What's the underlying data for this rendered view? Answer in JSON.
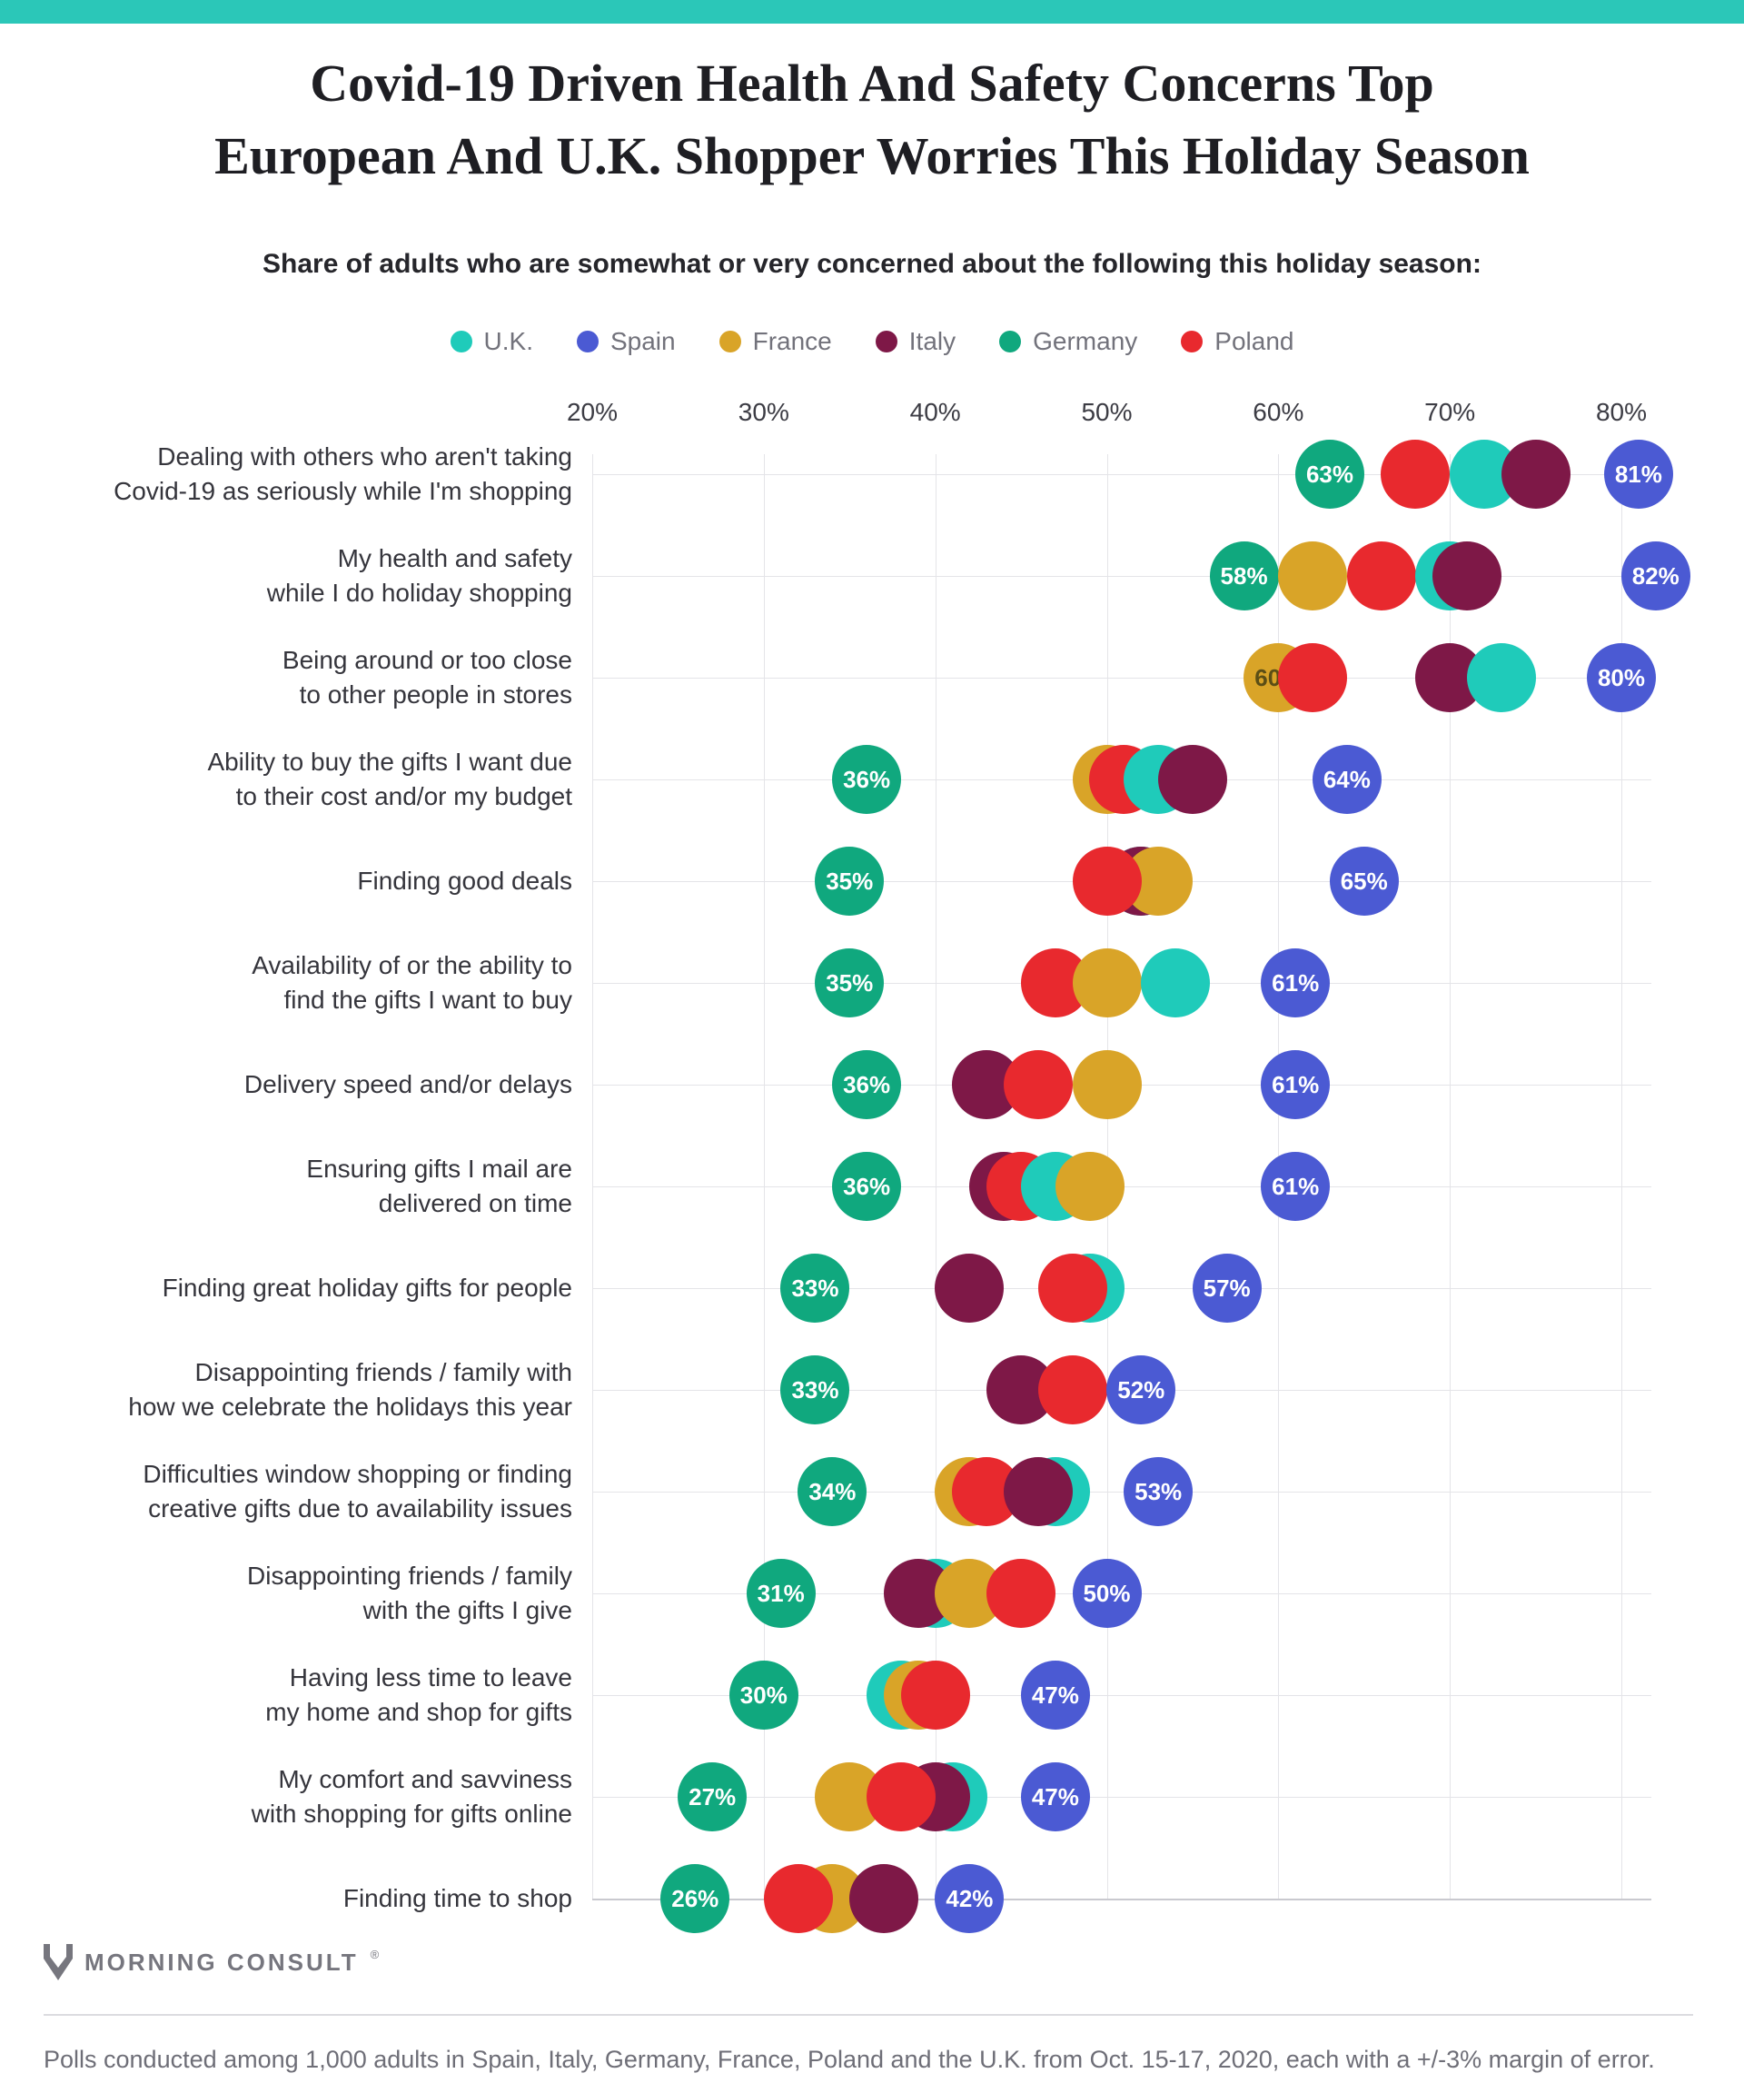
{
  "page": {
    "accent_bar_color": "#2BC7B8",
    "background": "#ffffff"
  },
  "title": {
    "text": "Covid-19 Driven Health And Safety Concerns Top\nEuropean And U.K. Shopper Worries This Holiday Season"
  },
  "subtitle": "Share of adults who are somewhat or very concerned about the following this holiday season:",
  "legend": [
    {
      "label": "U.K.",
      "color": "#1FCBBA"
    },
    {
      "label": "Spain",
      "color": "#4B5AD3"
    },
    {
      "label": "France",
      "color": "#D9A428"
    },
    {
      "label": "Italy",
      "color": "#7E1847"
    },
    {
      "label": "Germany",
      "color": "#10A87E"
    },
    {
      "label": "Poland",
      "color": "#E8292E"
    }
  ],
  "chart_data": {
    "type": "scatter",
    "x_axis": {
      "ticks": [
        20,
        30,
        40,
        50,
        60,
        70,
        80
      ],
      "tick_suffix": "%",
      "min": 20,
      "max": 80,
      "grid": true
    },
    "legend_position": "top",
    "dark_dot_label_color": "#5b4e16",
    "rows": [
      {
        "label": "Dealing with others who aren't taking\nCovid-19 as seriously while I'm shopping",
        "dots": [
          {
            "country": "Germany",
            "value": 63,
            "label": "63%"
          },
          {
            "country": "Poland",
            "value": 68
          },
          {
            "country": "U.K.",
            "value": 72
          },
          {
            "country": "Italy",
            "value": 75
          },
          {
            "country": "Spain",
            "value": 81,
            "label": "81%"
          }
        ]
      },
      {
        "label": "My health and safety\nwhile I do holiday shopping",
        "dots": [
          {
            "country": "Germany",
            "value": 58,
            "label": "58%"
          },
          {
            "country": "France",
            "value": 62
          },
          {
            "country": "Poland",
            "value": 66
          },
          {
            "country": "U.K.",
            "value": 70
          },
          {
            "country": "Italy",
            "value": 71
          },
          {
            "country": "Spain",
            "value": 82,
            "label": "82%"
          }
        ]
      },
      {
        "label": "Being around or too close\nto other people in stores",
        "dots": [
          {
            "country": "France",
            "value": 60,
            "label": "60%",
            "label_dark": true
          },
          {
            "country": "Poland",
            "value": 62
          },
          {
            "country": "Italy",
            "value": 70
          },
          {
            "country": "U.K.",
            "value": 73
          },
          {
            "country": "Spain",
            "value": 80,
            "label": "80%"
          }
        ]
      },
      {
        "label": "Ability to buy the gifts I want due\nto their cost and/or my budget",
        "dots": [
          {
            "country": "Germany",
            "value": 36,
            "label": "36%"
          },
          {
            "country": "France",
            "value": 50
          },
          {
            "country": "Poland",
            "value": 51
          },
          {
            "country": "U.K.",
            "value": 53
          },
          {
            "country": "Italy",
            "value": 55
          },
          {
            "country": "Spain",
            "value": 64,
            "label": "64%"
          }
        ]
      },
      {
        "label": "Finding good deals",
        "dots": [
          {
            "country": "Germany",
            "value": 35,
            "label": "35%"
          },
          {
            "country": "U.K.",
            "value": 52
          },
          {
            "country": "Italy",
            "value": 52
          },
          {
            "country": "France",
            "value": 53
          },
          {
            "country": "Poland",
            "value": 50
          },
          {
            "country": "Spain",
            "value": 65,
            "label": "65%"
          }
        ]
      },
      {
        "label": "Availability of or the ability to\nfind the gifts I want to buy",
        "dots": [
          {
            "country": "Germany",
            "value": 35,
            "label": "35%"
          },
          {
            "country": "Poland",
            "value": 47
          },
          {
            "country": "France",
            "value": 50
          },
          {
            "country": "U.K.",
            "value": 54
          },
          {
            "country": "Spain",
            "value": 61,
            "label": "61%"
          }
        ]
      },
      {
        "label": "Delivery speed and/or delays",
        "dots": [
          {
            "country": "Germany",
            "value": 36,
            "label": "36%"
          },
          {
            "country": "Italy",
            "value": 43
          },
          {
            "country": "Poland",
            "value": 46
          },
          {
            "country": "France",
            "value": 50
          },
          {
            "country": "Spain",
            "value": 61,
            "label": "61%"
          }
        ]
      },
      {
        "label": "Ensuring gifts I mail are\ndelivered on time",
        "dots": [
          {
            "country": "Germany",
            "value": 36,
            "label": "36%"
          },
          {
            "country": "Italy",
            "value": 44
          },
          {
            "country": "Poland",
            "value": 45
          },
          {
            "country": "U.K.",
            "value": 47
          },
          {
            "country": "France",
            "value": 49
          },
          {
            "country": "Spain",
            "value": 61,
            "label": "61%"
          }
        ]
      },
      {
        "label": "Finding great holiday gifts for people",
        "dots": [
          {
            "country": "Germany",
            "value": 33,
            "label": "33%"
          },
          {
            "country": "Italy",
            "value": 42
          },
          {
            "country": "U.K.",
            "value": 49
          },
          {
            "country": "Poland",
            "value": 48
          },
          {
            "country": "Spain",
            "value": 57,
            "label": "57%"
          }
        ]
      },
      {
        "label": "Disappointing friends / family with\nhow we celebrate the holidays this year",
        "dots": [
          {
            "country": "Germany",
            "value": 33,
            "label": "33%"
          },
          {
            "country": "Italy",
            "value": 45
          },
          {
            "country": "Poland",
            "value": 48
          },
          {
            "country": "Spain",
            "value": 52,
            "label": "52%"
          }
        ]
      },
      {
        "label": "Difficulties window shopping or finding\ncreative gifts due to availability issues",
        "dots": [
          {
            "country": "Germany",
            "value": 34,
            "label": "34%"
          },
          {
            "country": "France",
            "value": 42
          },
          {
            "country": "Poland",
            "value": 43
          },
          {
            "country": "U.K.",
            "value": 47
          },
          {
            "country": "Italy",
            "value": 46
          },
          {
            "country": "Spain",
            "value": 53,
            "label": "53%"
          }
        ]
      },
      {
        "label": "Disappointing friends / family\nwith the gifts I give",
        "dots": [
          {
            "country": "Germany",
            "value": 31,
            "label": "31%"
          },
          {
            "country": "U.K.",
            "value": 40
          },
          {
            "country": "Italy",
            "value": 39
          },
          {
            "country": "France",
            "value": 42
          },
          {
            "country": "Poland",
            "value": 45
          },
          {
            "country": "Spain",
            "value": 50,
            "label": "50%"
          }
        ]
      },
      {
        "label": "Having less time to leave\nmy home and shop for gifts",
        "dots": [
          {
            "country": "Germany",
            "value": 30,
            "label": "30%"
          },
          {
            "country": "U.K.",
            "value": 38
          },
          {
            "country": "France",
            "value": 39
          },
          {
            "country": "Poland",
            "value": 40
          },
          {
            "country": "Spain",
            "value": 47,
            "label": "47%"
          }
        ]
      },
      {
        "label": "My comfort and savviness\nwith shopping for gifts online",
        "dots": [
          {
            "country": "Germany",
            "value": 27,
            "label": "27%"
          },
          {
            "country": "France",
            "value": 35
          },
          {
            "country": "U.K.",
            "value": 41
          },
          {
            "country": "Italy",
            "value": 40
          },
          {
            "country": "Poland",
            "value": 38
          },
          {
            "country": "Spain",
            "value": 47,
            "label": "47%"
          }
        ]
      },
      {
        "label": "Finding time to shop",
        "dots": [
          {
            "country": "Germany",
            "value": 26,
            "label": "26%"
          },
          {
            "country": "France",
            "value": 34
          },
          {
            "country": "Poland",
            "value": 32
          },
          {
            "country": "Italy",
            "value": 37
          },
          {
            "country": "Spain",
            "value": 42,
            "label": "42%"
          }
        ]
      }
    ]
  },
  "footer": {
    "logo_text": "MORNING CONSULT",
    "trademark": "®",
    "note": "Polls conducted among 1,000 adults in Spain, Italy, Germany, France, Poland and the U.K. from Oct. 15-17, 2020, each with a +/-3% margin of error."
  }
}
